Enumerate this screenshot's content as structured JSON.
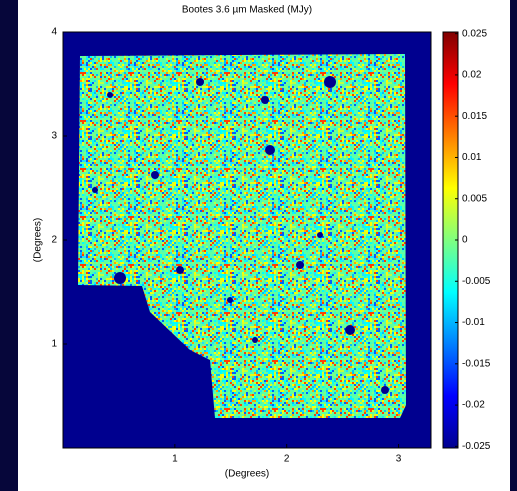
{
  "chart_data": {
    "type": "heatmap",
    "title": "Bootes 3.6 µm Masked  (MJy)",
    "x_label": "(Degrees)",
    "y_label": "(Degrees)",
    "xlim": [
      0,
      3.29
    ],
    "xticks": [
      1,
      2,
      3
    ],
    "ylim": [
      0,
      4
    ],
    "yticks": [
      1,
      2,
      3,
      4
    ],
    "clim": [
      -0.0252,
      0.0252
    ],
    "cticks": [
      0.025,
      0.02,
      0.015,
      0.01,
      0.005,
      0,
      -0.005,
      -0.01,
      -0.015,
      -0.02,
      -0.025
    ]
  }
}
